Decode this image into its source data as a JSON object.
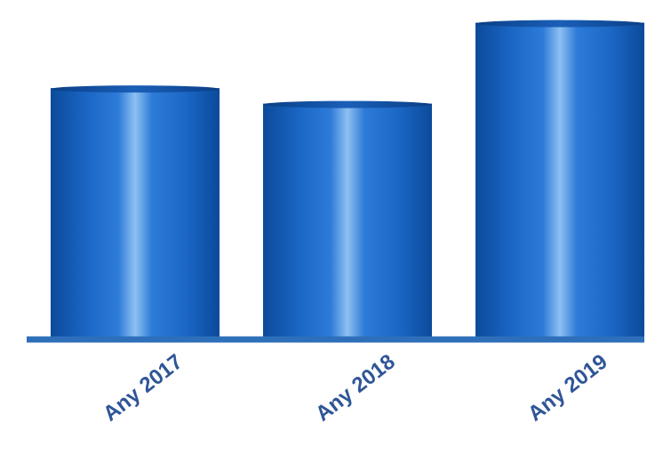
{
  "chart_data": {
    "type": "bar",
    "categories": [
      "Any 2017",
      "Any 2018",
      "Any 2019"
    ],
    "values": [
      290,
      272,
      366
    ],
    "ylim": [
      0,
      380
    ],
    "grid": false,
    "legend": "none",
    "title": "",
    "xlabel": "",
    "ylabel": "",
    "colors": {
      "bar_dark": "#0b4a9a",
      "bar_mid": "#1b67c6",
      "bar_highlight": "#8ec0f2",
      "baseline": "#2e6fba",
      "tick_label": "#2f5597"
    }
  }
}
